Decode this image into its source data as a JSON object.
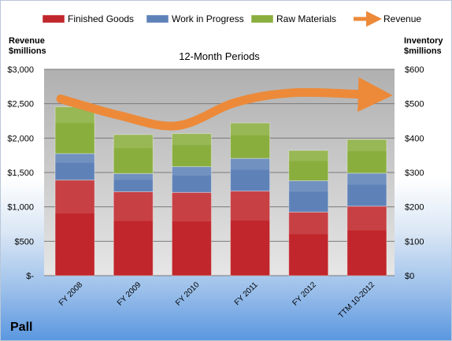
{
  "company": "Pall",
  "chart_data": {
    "type": "bar",
    "stacked": true,
    "title": "12-Month Periods",
    "categories": [
      "FY 2008",
      "FY 2009",
      "FY 2010",
      "FY 2011",
      "FY 2012",
      "TTM 10-2012"
    ],
    "series": [
      {
        "name": "Finished Goods",
        "axis": "right",
        "color": "#c0262b",
        "values": [
          278,
          244,
          242,
          246,
          185,
          202
        ]
      },
      {
        "name": "Work in Progress",
        "axis": "right",
        "color": "#5e82b8",
        "values": [
          77,
          53,
          75,
          95,
          91,
          96
        ]
      },
      {
        "name": "Raw Materials",
        "axis": "right",
        "color": "#8aae3e",
        "values": [
          136,
          113,
          96,
          103,
          88,
          98
        ]
      }
    ],
    "line_series": {
      "name": "Revenue",
      "axis": "left",
      "color": "#ec8a3a",
      "values": [
        2570,
        2330,
        2180,
        2520,
        2660,
        2630
      ]
    },
    "left_axis": {
      "title": "Revenue\n$millions",
      "ticks": [
        "$3,000",
        "$2,500",
        "$2,000",
        "$1,500",
        "$1,000",
        "$500",
        "$-"
      ],
      "ylim": [
        0,
        3000
      ]
    },
    "right_axis": {
      "title": "Inventory\n$millions",
      "ticks": [
        "$600",
        "$500",
        "$400",
        "$300",
        "$200",
        "$100",
        "$0"
      ],
      "ylim": [
        0,
        600
      ]
    },
    "legend_position": "top",
    "grid": true
  }
}
